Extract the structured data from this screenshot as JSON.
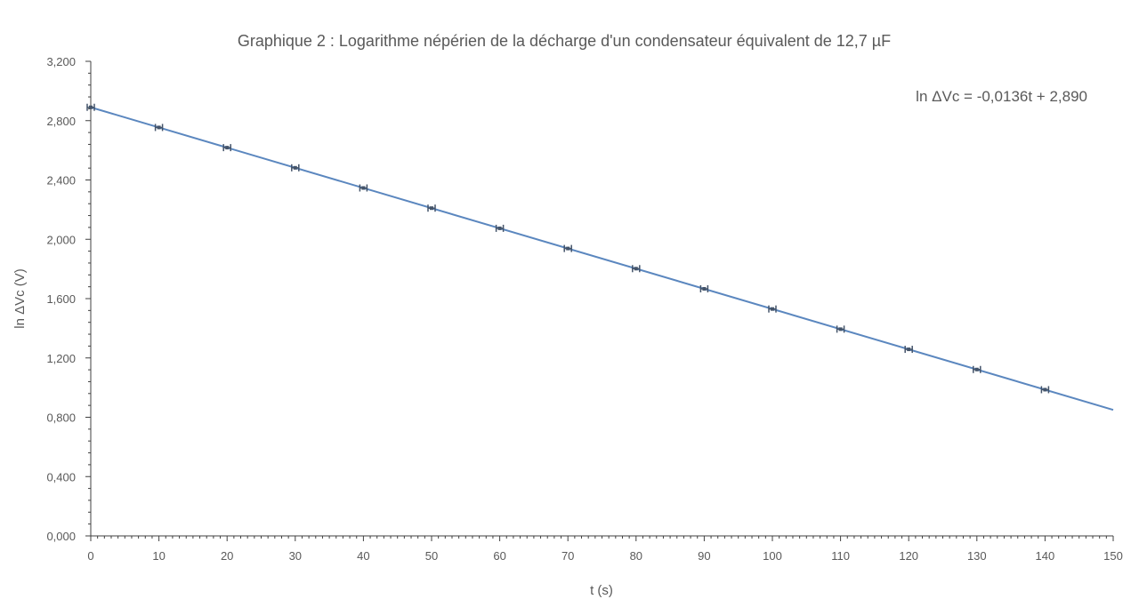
{
  "chart_data": {
    "type": "scatter",
    "title": "Graphique 2 :  Logarithme népérien de la décharge d'un condensateur équivalent de 12,7 µF",
    "xlabel": "t (s)",
    "ylabel": "ln ΔVc (V)",
    "equation": "ln ΔVc = -0,0136t + 2,890",
    "xlim": [
      0,
      150
    ],
    "ylim": [
      0,
      3.2
    ],
    "x_ticks": [
      "0",
      "10",
      "20",
      "30",
      "40",
      "50",
      "60",
      "70",
      "80",
      "90",
      "100",
      "110",
      "120",
      "130",
      "140",
      "150"
    ],
    "y_ticks": [
      "0,000",
      "0,400",
      "0,800",
      "1,200",
      "1,600",
      "2,000",
      "2,400",
      "2,800",
      "3,200"
    ],
    "grid": false,
    "series": [
      {
        "x": [
          0,
          10,
          20,
          30,
          40,
          50,
          60,
          70,
          80,
          90,
          100,
          110,
          120,
          130,
          140
        ],
        "y": [
          2.89,
          2.754,
          2.618,
          2.482,
          2.346,
          2.21,
          2.074,
          1.938,
          1.802,
          1.666,
          1.53,
          1.394,
          1.258,
          1.122,
          0.986
        ],
        "marker_color": "#44546a",
        "error_bars": true
      }
    ],
    "trendline": {
      "slope": -0.0136,
      "intercept": 2.89,
      "x_range": [
        0,
        150
      ],
      "color": "#5b87bf"
    }
  }
}
